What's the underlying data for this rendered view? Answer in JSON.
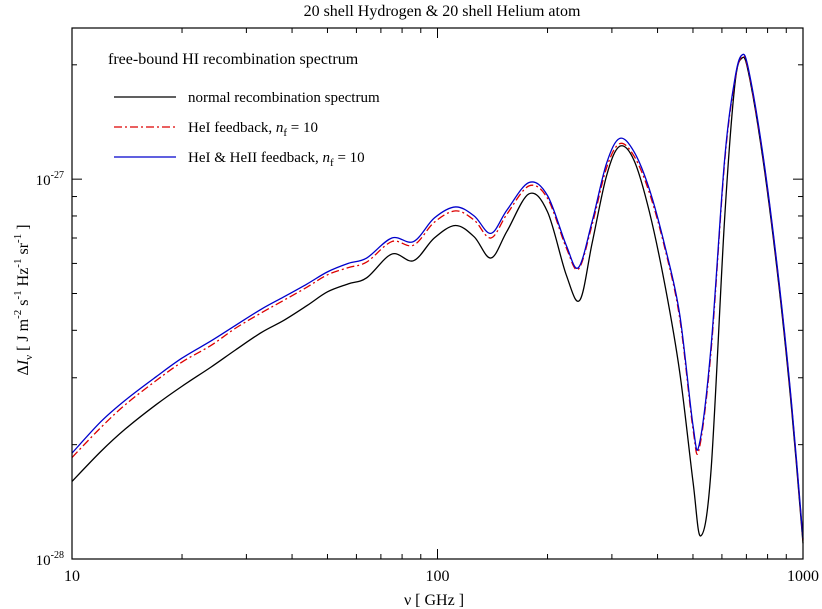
{
  "chart_data": {
    "type": "line",
    "title": "20 shell Hydrogen & 20 shell Helium atom",
    "annotation": "free-bound HI recombination spectrum",
    "xlabel": "ν [ GHz ]",
    "ylabel": "ΔI_ν [ J m^-2 s^-1 Hz^-1 sr^-1 ]",
    "x_scale": "log",
    "y_scale": "log",
    "xlim": [
      10,
      1000
    ],
    "ylim": [
      1e-28,
      2.5e-27
    ],
    "x_ticks": [
      {
        "value": 10,
        "label": "10"
      },
      {
        "value": 100,
        "label": "100"
      },
      {
        "value": 1000,
        "label": "1000"
      }
    ],
    "y_ticks": [
      {
        "value": 1e-28,
        "base": "10",
        "exp": "-28"
      },
      {
        "value": 1e-27,
        "base": "10",
        "exp": "-27"
      }
    ],
    "grid": false,
    "legend_position": "top-left",
    "series": [
      {
        "name": "normal recombination spectrum",
        "color": "#000000",
        "dash": "solid",
        "points": [
          [
            10,
            1.6e-28
          ],
          [
            12,
            1.92e-28
          ],
          [
            14,
            2.2e-28
          ],
          [
            17,
            2.55e-28
          ],
          [
            20,
            2.85e-28
          ],
          [
            24,
            3.2e-28
          ],
          [
            28,
            3.55e-28
          ],
          [
            33,
            3.95e-28
          ],
          [
            38,
            4.25e-28
          ],
          [
            44,
            4.65e-28
          ],
          [
            50,
            5.05e-28
          ],
          [
            57,
            5.3e-28
          ],
          [
            64,
            5.5e-28
          ],
          [
            75,
            6.35e-28
          ],
          [
            86,
            6.1e-28
          ],
          [
            98,
            7e-28
          ],
          [
            112,
            7.55e-28
          ],
          [
            126,
            7.05e-28
          ],
          [
            140,
            6.2e-28
          ],
          [
            155,
            7.3e-28
          ],
          [
            178,
            9.15e-28
          ],
          [
            200,
            8.2e-28
          ],
          [
            225,
            5.6e-28
          ],
          [
            245,
            4.8e-28
          ],
          [
            265,
            6.8e-28
          ],
          [
            290,
            1.02e-27
          ],
          [
            315,
            1.22e-27
          ],
          [
            345,
            1.12e-27
          ],
          [
            380,
            8.2e-28
          ],
          [
            420,
            5.2e-28
          ],
          [
            460,
            3.1e-28
          ],
          [
            500,
            1.6e-28
          ],
          [
            525,
            1.15e-28
          ],
          [
            560,
            1.7e-28
          ],
          [
            610,
            7.8e-28
          ],
          [
            650,
            1.75e-27
          ],
          [
            680,
            2.08e-27
          ],
          [
            710,
            1.9e-27
          ],
          [
            780,
            1.1e-27
          ],
          [
            860,
            5.2e-28
          ],
          [
            930,
            2.5e-28
          ],
          [
            1000,
            1.1e-28
          ]
        ]
      },
      {
        "name": "HeI feedback, n_f = 10",
        "color": "#dd0000",
        "dash": "dashdot",
        "points": [
          [
            10,
            1.85e-28
          ],
          [
            12,
            2.22e-28
          ],
          [
            14,
            2.55e-28
          ],
          [
            17,
            2.95e-28
          ],
          [
            20,
            3.3e-28
          ],
          [
            24,
            3.65e-28
          ],
          [
            28,
            4.05e-28
          ],
          [
            33,
            4.45e-28
          ],
          [
            38,
            4.8e-28
          ],
          [
            44,
            5.2e-28
          ],
          [
            50,
            5.6e-28
          ],
          [
            57,
            5.85e-28
          ],
          [
            64,
            6.05e-28
          ],
          [
            75,
            6.85e-28
          ],
          [
            86,
            6.7e-28
          ],
          [
            98,
            7.7e-28
          ],
          [
            112,
            8.25e-28
          ],
          [
            126,
            7.8e-28
          ],
          [
            140,
            7e-28
          ],
          [
            155,
            8.1e-28
          ],
          [
            178,
            9.6e-28
          ],
          [
            200,
            8.9e-28
          ],
          [
            225,
            6.6e-28
          ],
          [
            243,
            5.8e-28
          ],
          [
            265,
            7.6e-28
          ],
          [
            290,
            1.07e-27
          ],
          [
            315,
            1.24e-27
          ],
          [
            345,
            1.15e-27
          ],
          [
            380,
            9.2e-28
          ],
          [
            420,
            6.5e-28
          ],
          [
            460,
            4.3e-28
          ],
          [
            500,
            2.2e-28
          ],
          [
            520,
            1.95e-28
          ],
          [
            560,
            3.5e-28
          ],
          [
            610,
            1.1e-27
          ],
          [
            650,
            1.8e-27
          ],
          [
            680,
            2.1e-27
          ],
          [
            710,
            1.92e-27
          ],
          [
            780,
            1.12e-27
          ],
          [
            860,
            5.3e-28
          ],
          [
            930,
            2.55e-28
          ],
          [
            1000,
            1.12e-28
          ]
        ]
      },
      {
        "name": "HeI & HeII feedback, n_f = 10",
        "color": "#0000cc",
        "dash": "solid",
        "points": [
          [
            10,
            1.9e-28
          ],
          [
            12,
            2.3e-28
          ],
          [
            14,
            2.62e-28
          ],
          [
            17,
            3.02e-28
          ],
          [
            20,
            3.38e-28
          ],
          [
            24,
            3.75e-28
          ],
          [
            28,
            4.12e-28
          ],
          [
            33,
            4.55e-28
          ],
          [
            38,
            4.9e-28
          ],
          [
            44,
            5.3e-28
          ],
          [
            50,
            5.7e-28
          ],
          [
            57,
            6e-28
          ],
          [
            64,
            6.2e-28
          ],
          [
            75,
            7e-28
          ],
          [
            86,
            6.85e-28
          ],
          [
            98,
            7.9e-28
          ],
          [
            112,
            8.45e-28
          ],
          [
            126,
            8e-28
          ],
          [
            140,
            7.2e-28
          ],
          [
            155,
            8.3e-28
          ],
          [
            178,
            9.8e-28
          ],
          [
            200,
            9.05e-28
          ],
          [
            225,
            6.7e-28
          ],
          [
            243,
            5.85e-28
          ],
          [
            265,
            7.75e-28
          ],
          [
            290,
            1.1e-27
          ],
          [
            315,
            1.28e-27
          ],
          [
            345,
            1.18e-27
          ],
          [
            380,
            9.4e-28
          ],
          [
            420,
            6.6e-28
          ],
          [
            460,
            4.4e-28
          ],
          [
            500,
            2.25e-28
          ],
          [
            520,
            2e-28
          ],
          [
            560,
            3.6e-28
          ],
          [
            610,
            1.12e-27
          ],
          [
            650,
            1.82e-27
          ],
          [
            680,
            2.12e-27
          ],
          [
            710,
            1.94e-27
          ],
          [
            780,
            1.13e-27
          ],
          [
            860,
            5.35e-28
          ],
          [
            930,
            2.58e-28
          ],
          [
            1000,
            1.13e-28
          ]
        ]
      }
    ]
  },
  "legend": {
    "items": [
      {
        "label_main": "normal recombination spectrum",
        "label_tail": "",
        "sub": ""
      },
      {
        "label_main": "HeI feedback, ",
        "label_tail": " = 10",
        "sub": "f"
      },
      {
        "label_main": "HeI & HeII feedback, ",
        "label_tail": " = 10",
        "sub": "f"
      }
    ],
    "n_symbol": "n"
  },
  "axis_text": {
    "x_label": "ν [ GHz ]",
    "y_label_delta": "Δ",
    "y_label_i": "I",
    "y_label_nu": "ν",
    "y_label_units": "[ J m",
    "y_exp_m": "-2",
    "y_s": "s",
    "y_exp_s": "-1",
    "y_hz": "Hz",
    "y_exp_hz": "-1",
    "y_sr": "sr",
    "y_exp_sr": "-1",
    "y_close": "]"
  }
}
